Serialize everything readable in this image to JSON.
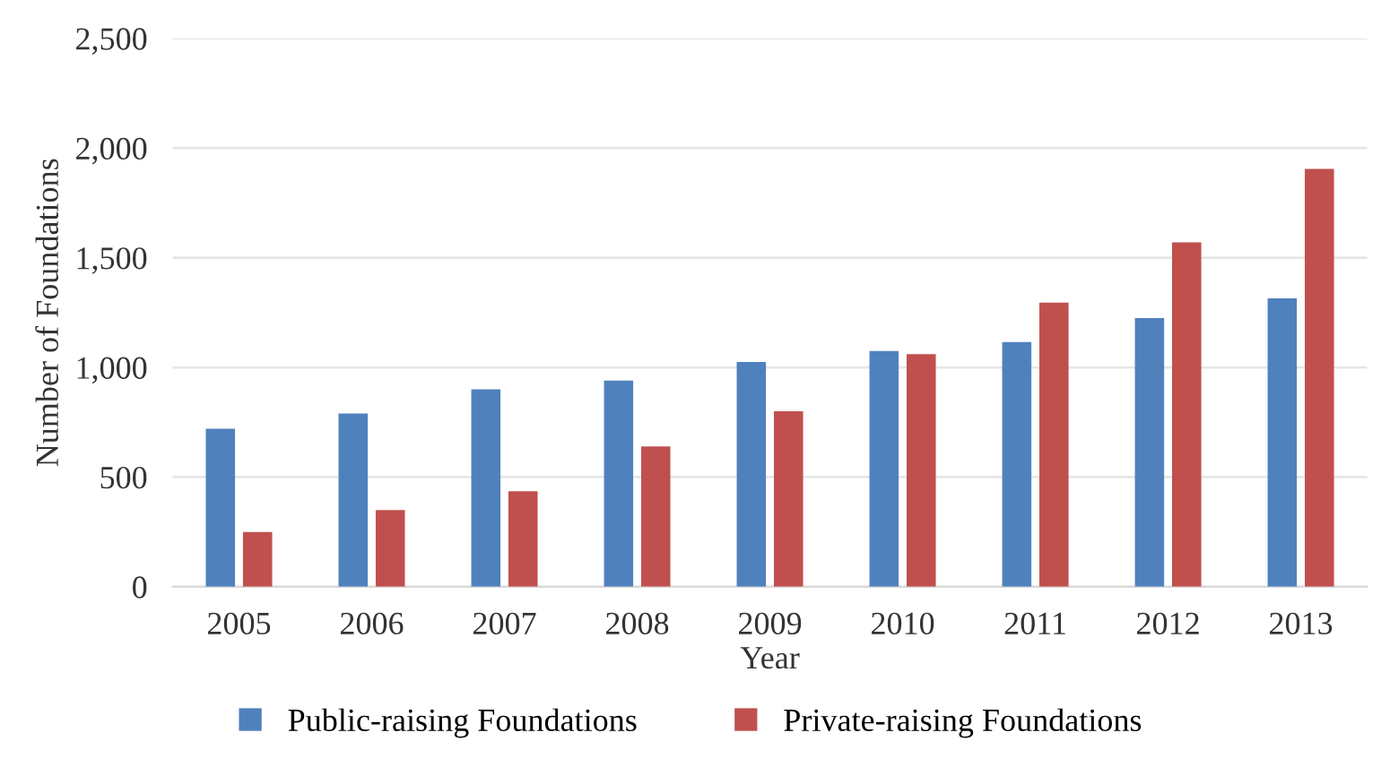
{
  "chart_data": {
    "type": "bar",
    "xlabel": "Year",
    "ylabel": "Number of Foundations",
    "categories": [
      "2005",
      "2006",
      "2007",
      "2008",
      "2009",
      "2010",
      "2011",
      "2012",
      "2013"
    ],
    "series": [
      {
        "name": "Public-raising Foundations",
        "color": "#4f81bd",
        "values": [
          720,
          790,
          900,
          940,
          1025,
          1075,
          1115,
          1225,
          1315
        ]
      },
      {
        "name": "Private-raising Foundations",
        "color": "#c0504d",
        "values": [
          250,
          350,
          435,
          640,
          800,
          1060,
          1295,
          1570,
          1905
        ]
      }
    ],
    "ylim": [
      0,
      2500
    ],
    "yticks": [
      {
        "value": 0,
        "label": "0"
      },
      {
        "value": 500,
        "label": "500"
      },
      {
        "value": 1000,
        "label": "1,000"
      },
      {
        "value": 1500,
        "label": "1,500"
      },
      {
        "value": 2000,
        "label": "2,000"
      },
      {
        "value": 2500,
        "label": "2,500"
      }
    ],
    "grid": "y",
    "legend": "bottom"
  }
}
